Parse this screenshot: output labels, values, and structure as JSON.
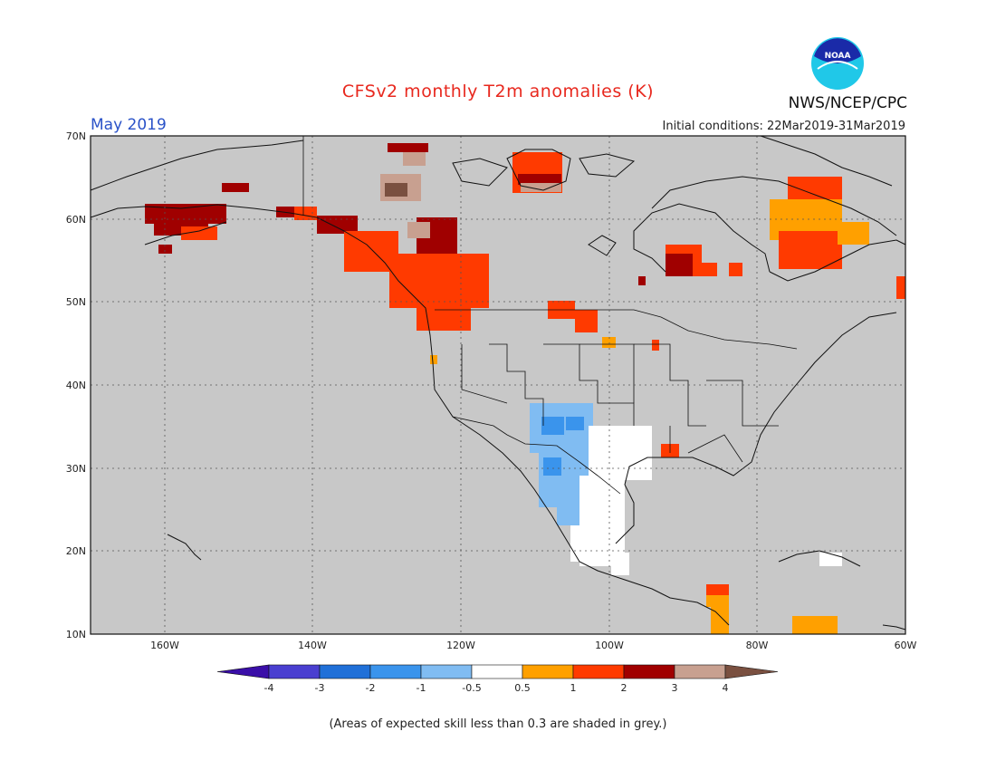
{
  "title": "CFSv2 monthly T2m anomalies (K)",
  "month": "May 2019",
  "agency": "NWS/NCEP/CPC",
  "initial_conditions": "Initial conditions: 22Mar2019-31Mar2019",
  "footer_note": "(Areas of expected skill less than 0.3 are shaded in grey.)",
  "logo_text": "NOAA",
  "map": {
    "lon_range": [
      -170,
      -60
    ],
    "lat_range": [
      10,
      70
    ],
    "lat_labels": [
      "70N",
      "60N",
      "50N",
      "40N",
      "30N",
      "20N",
      "10N"
    ],
    "lon_labels": [
      "160W",
      "140W",
      "120W",
      "100W",
      "80W",
      "60W"
    ],
    "grid": true,
    "background_color": "#c8c8c8",
    "regions": [
      {
        "name": "alaska-strong-warm",
        "level": "2 to 3"
      },
      {
        "name": "pacific-northwest-warm",
        "level": "1 to 2"
      },
      {
        "name": "southwest-cool",
        "level": "-1 to -0.5"
      },
      {
        "name": "mexico-neutral",
        "level": "-0.5 to 0.5"
      },
      {
        "name": "hudson-bay-warm",
        "level": "2 to 3"
      },
      {
        "name": "quebec-labrador-warm",
        "level": "0.5 to 2"
      }
    ]
  },
  "colorbar": {
    "labels": [
      "-4",
      "-3",
      "-2",
      "-1",
      "-0.5",
      "0.5",
      "1",
      "2",
      "3",
      "4"
    ],
    "colors": [
      "#3a0ea8",
      "#4a3fd0",
      "#2070d8",
      "#3a94ec",
      "#80bcf2",
      "#ffffff",
      "#ffa000",
      "#ff3a00",
      "#a00000",
      "#c8a090",
      "#7a5040"
    ]
  }
}
